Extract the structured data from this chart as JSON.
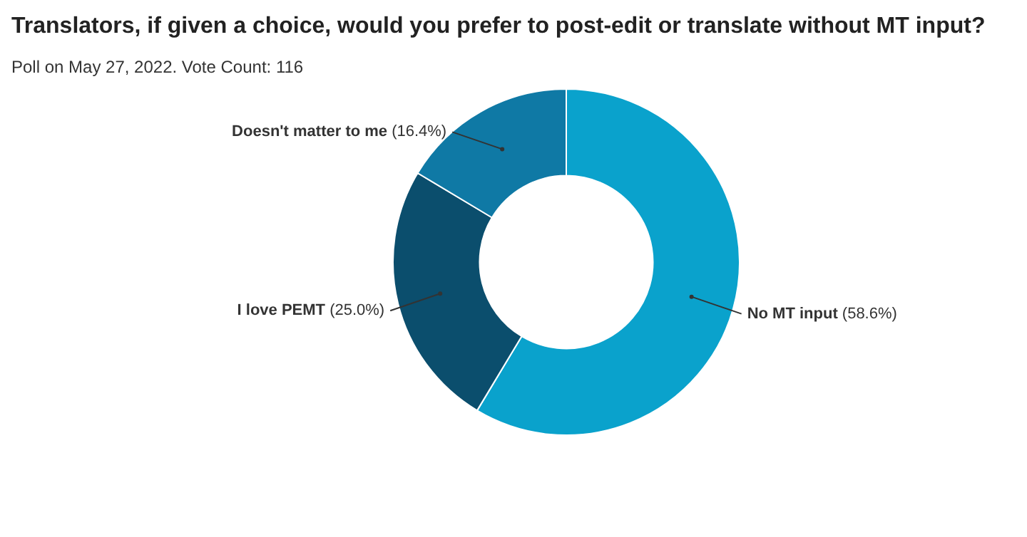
{
  "chart_data": {
    "type": "donut",
    "title": "Translators, if given a choice, would you prefer to post-edit or translate without MT input?",
    "subtitle": "Poll on May 27, 2022. Vote Count: 116",
    "categories": [
      "No MT input",
      "I love PEMT",
      "Doesn't matter to me"
    ],
    "values": [
      58.6,
      25.0,
      16.4
    ],
    "colors": [
      "#0aa2cc",
      "#0b4e6d",
      "#0f79a5"
    ],
    "value_labels": [
      "(58.6%)",
      "(25.0%)",
      "(16.4%)"
    ],
    "legend": false
  }
}
